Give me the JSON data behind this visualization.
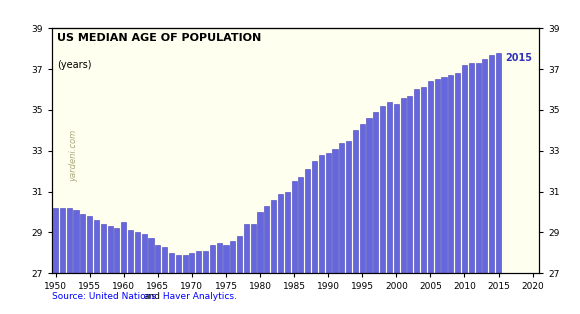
{
  "title": "US MEDIAN AGE OF POPULATION",
  "subtitle": "(years)",
  "watermark": "yardeni.com",
  "annotation": "2015",
  "annotation_color": "#3333bb",
  "bar_color": "#6666dd",
  "bar_edge_color": "#4444bb",
  "background_color": "#fffff0",
  "figure_bg": "#ffffff",
  "xlim": [
    1949.5,
    2021
  ],
  "ylim": [
    27,
    39
  ],
  "yticks": [
    27,
    29,
    31,
    33,
    35,
    37,
    39
  ],
  "xticks": [
    1950,
    1955,
    1960,
    1965,
    1970,
    1975,
    1980,
    1985,
    1990,
    1995,
    2000,
    2005,
    2010,
    2015,
    2020
  ],
  "years": [
    1950,
    1951,
    1952,
    1953,
    1954,
    1955,
    1956,
    1957,
    1958,
    1959,
    1960,
    1961,
    1962,
    1963,
    1964,
    1965,
    1966,
    1967,
    1968,
    1969,
    1970,
    1971,
    1972,
    1973,
    1974,
    1975,
    1976,
    1977,
    1978,
    1979,
    1980,
    1981,
    1982,
    1983,
    1984,
    1985,
    1986,
    1987,
    1988,
    1989,
    1990,
    1991,
    1992,
    1993,
    1994,
    1995,
    1996,
    1997,
    1998,
    1999,
    2000,
    2001,
    2002,
    2003,
    2004,
    2005,
    2006,
    2007,
    2008,
    2009,
    2010,
    2011,
    2012,
    2013,
    2014,
    2015
  ],
  "values": [
    30.2,
    30.2,
    30.2,
    30.1,
    29.9,
    29.8,
    29.6,
    29.4,
    29.3,
    29.2,
    29.5,
    29.1,
    29.0,
    28.9,
    28.7,
    28.4,
    28.3,
    28.0,
    27.9,
    27.9,
    28.0,
    28.1,
    28.1,
    28.4,
    28.5,
    28.4,
    28.6,
    28.8,
    29.4,
    29.4,
    30.0,
    30.3,
    30.6,
    30.9,
    31.0,
    31.5,
    31.7,
    32.1,
    32.5,
    32.8,
    32.9,
    33.1,
    33.4,
    33.5,
    34.0,
    34.3,
    34.6,
    34.9,
    35.2,
    35.4,
    35.3,
    35.6,
    35.7,
    36.0,
    36.1,
    36.4,
    36.5,
    36.6,
    36.7,
    36.8,
    37.2,
    37.3,
    37.3,
    37.5,
    37.7,
    37.8
  ]
}
